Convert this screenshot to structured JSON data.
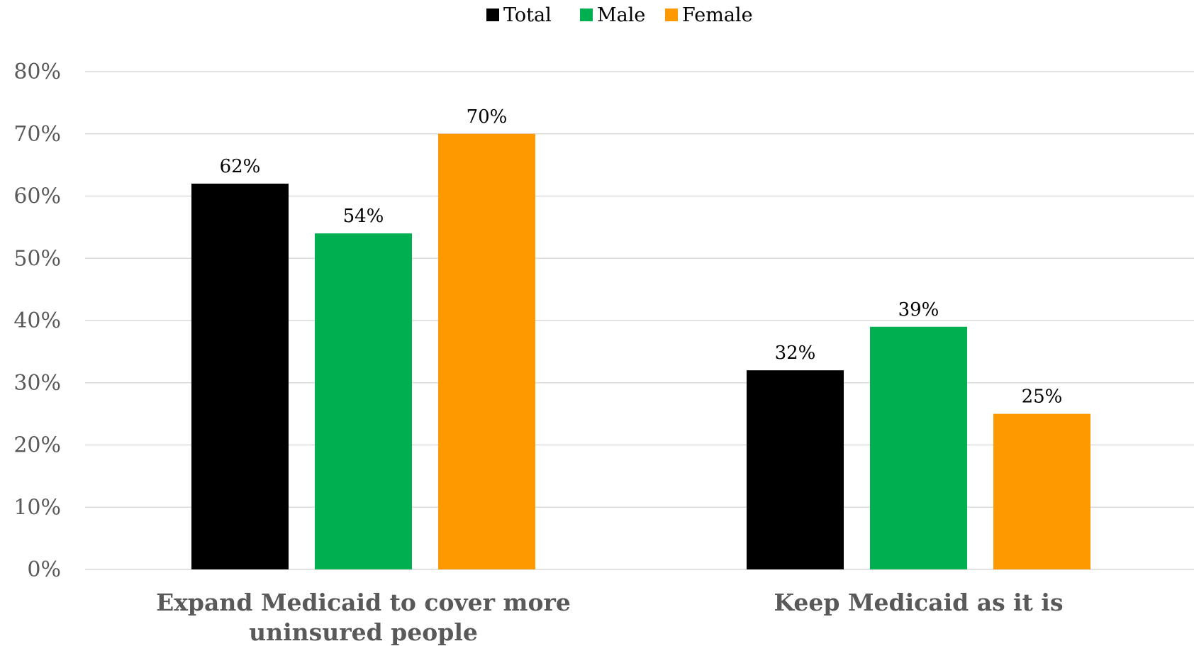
{
  "chart_data": {
    "type": "bar",
    "categories": [
      [
        "Expand Medicaid to cover more",
        "uninsured people"
      ],
      [
        "Keep Medicaid as it is"
      ]
    ],
    "series": [
      {
        "name": "Total",
        "color": "#000000",
        "values": [
          62,
          32
        ],
        "labels": [
          "62%",
          "32%"
        ]
      },
      {
        "name": "Male",
        "color": "#00b050",
        "values": [
          54,
          39
        ],
        "labels": [
          "54%",
          "39%"
        ]
      },
      {
        "name": "Female",
        "color": "#ff9900",
        "values": [
          70,
          25
        ],
        "labels": [
          "70%",
          "25%"
        ]
      }
    ],
    "y_ticks": [
      {
        "value": 0,
        "label": "0%"
      },
      {
        "value": 10,
        "label": "10%"
      },
      {
        "value": 20,
        "label": "20%"
      },
      {
        "value": 30,
        "label": "30%"
      },
      {
        "value": 40,
        "label": "40%"
      },
      {
        "value": 50,
        "label": "50%"
      },
      {
        "value": 60,
        "label": "60%"
      },
      {
        "value": 70,
        "label": "70%"
      },
      {
        "value": 80,
        "label": "80%"
      }
    ],
    "ylim": [
      0,
      80
    ],
    "grid": true,
    "legend_position": "top-center",
    "title": "",
    "xlabel": "",
    "ylabel": ""
  }
}
